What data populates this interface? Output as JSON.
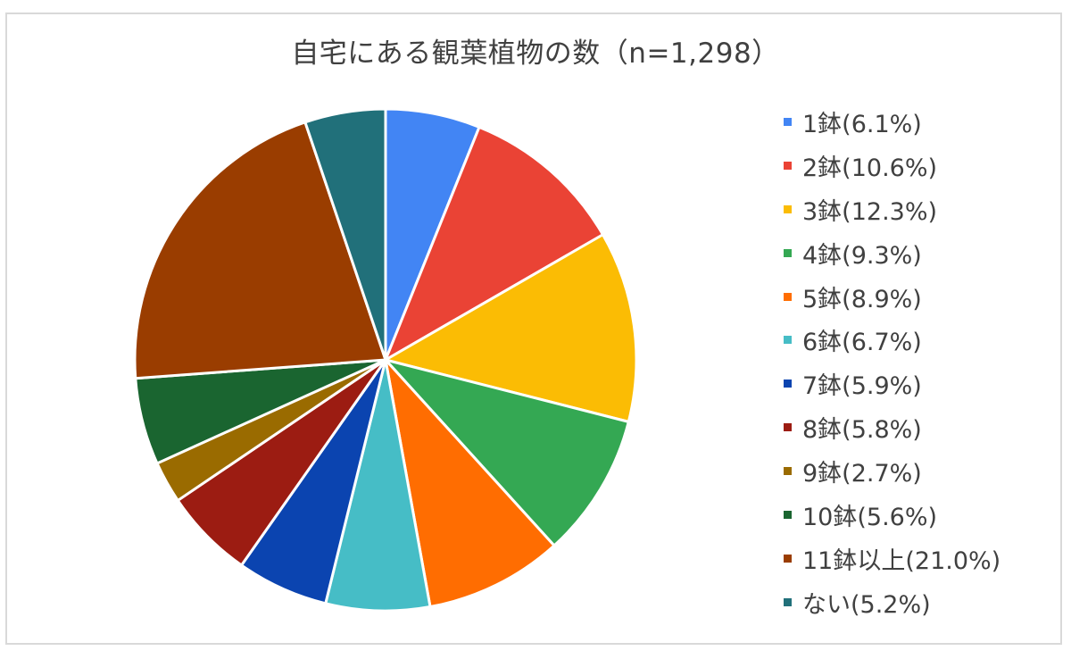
{
  "chart_data": {
    "type": "pie",
    "title": "自宅にある観葉植物の数（n=1,298）",
    "legend_position": "right",
    "slices": [
      {
        "label": "1鉢(6.1%)",
        "value": 6.1,
        "color": "#4285f4"
      },
      {
        "label": "2鉢(10.6%)",
        "value": 10.6,
        "color": "#ea4335"
      },
      {
        "label": "3鉢(12.3%)",
        "value": 12.3,
        "color": "#fbbc04"
      },
      {
        "label": "4鉢(9.3%)",
        "value": 9.3,
        "color": "#34a853"
      },
      {
        "label": "5鉢(8.9%)",
        "value": 8.9,
        "color": "#ff6d01"
      },
      {
        "label": "6鉢(6.7%)",
        "value": 6.7,
        "color": "#46bdc6"
      },
      {
        "label": "7鉢(5.9%)",
        "value": 5.9,
        "color": "#0b44b0"
      },
      {
        "label": "8鉢(5.8%)",
        "value": 5.8,
        "color": "#9c1c12"
      },
      {
        "label": "9鉢(2.7%)",
        "value": 2.7,
        "color": "#9a6b00"
      },
      {
        "label": "10鉢(5.6%)",
        "value": 5.6,
        "color": "#1a6530"
      },
      {
        "label": "11鉢以上(21.0%)",
        "value": 21.0,
        "color": "#9a3d00"
      },
      {
        "label": "ない(5.2%)",
        "value": 5.2,
        "color": "#21707a"
      }
    ]
  }
}
